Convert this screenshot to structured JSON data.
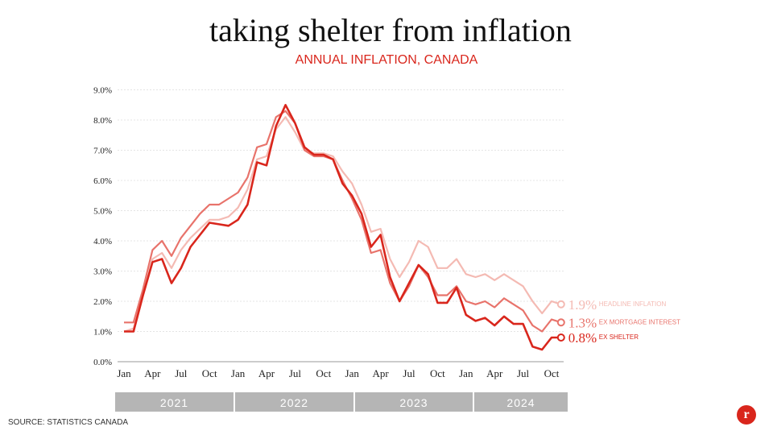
{
  "header": {
    "title": "taking shelter from inflation",
    "subtitle": "ANNUAL INFLATION, CANADA"
  },
  "footer": {
    "source": "SOURCE: STATISTICS CANADA",
    "logo": "r"
  },
  "chart_data": {
    "type": "line",
    "title": "taking shelter from inflation",
    "subtitle": "ANNUAL INFLATION, CANADA",
    "ylim": [
      0,
      9
    ],
    "yticks": [
      "0.0%",
      "1.0%",
      "2.0%",
      "3.0%",
      "4.0%",
      "5.0%",
      "6.0%",
      "7.0%",
      "8.0%",
      "9.0%"
    ],
    "xtick_labels": [
      "Jan",
      "Apr",
      "Jul",
      "Oct",
      "Jan",
      "Apr",
      "Jul",
      "Oct",
      "Jan",
      "Apr",
      "Jul",
      "Oct",
      "Jan",
      "Apr",
      "Jul",
      "Oct"
    ],
    "years": [
      "2021",
      "2022",
      "2023",
      "2024"
    ],
    "x_start": "Jan 2021",
    "x_end": "Nov 2024",
    "grid": true,
    "series": [
      {
        "name": "HEADLINE INFLATION",
        "end_label": "1.9%",
        "color": "#f4bab3",
        "values": [
          1.0,
          1.1,
          2.2,
          3.4,
          3.6,
          3.1,
          3.7,
          4.1,
          4.4,
          4.7,
          4.7,
          4.8,
          5.1,
          5.7,
          6.7,
          6.8,
          7.7,
          8.1,
          7.6,
          7.0,
          6.9,
          6.9,
          6.8,
          6.3,
          5.9,
          5.2,
          4.3,
          4.4,
          3.4,
          2.8,
          3.3,
          4.0,
          3.8,
          3.1,
          3.1,
          3.4,
          2.9,
          2.8,
          2.9,
          2.7,
          2.9,
          2.7,
          2.5,
          2.0,
          1.6,
          2.0,
          1.9
        ]
      },
      {
        "name": "EX MORTGAGE INTEREST",
        "end_label": "1.3%",
        "color": "#e8736b",
        "values": [
          1.3,
          1.3,
          2.4,
          3.7,
          4.0,
          3.5,
          4.1,
          4.5,
          4.9,
          5.2,
          5.2,
          5.4,
          5.6,
          6.1,
          7.1,
          7.2,
          8.1,
          8.3,
          7.9,
          7.0,
          6.8,
          6.8,
          6.7,
          6.0,
          5.4,
          4.7,
          3.6,
          3.7,
          2.6,
          2.0,
          2.5,
          3.2,
          2.8,
          2.2,
          2.2,
          2.5,
          2.0,
          1.9,
          2.0,
          1.8,
          2.1,
          1.9,
          1.7,
          1.2,
          1.0,
          1.4,
          1.3
        ]
      },
      {
        "name": "EX SHELTER",
        "end_label": "0.8%",
        "color": "#d9261c",
        "values": [
          1.0,
          1.0,
          2.2,
          3.3,
          3.4,
          2.6,
          3.1,
          3.8,
          4.2,
          4.6,
          4.55,
          4.5,
          4.7,
          5.2,
          6.6,
          6.5,
          7.8,
          8.5,
          7.9,
          7.1,
          6.85,
          6.85,
          6.7,
          5.9,
          5.5,
          4.9,
          3.8,
          4.2,
          2.8,
          2.0,
          2.6,
          3.2,
          2.9,
          1.95,
          1.95,
          2.45,
          1.55,
          1.35,
          1.45,
          1.2,
          1.5,
          1.25,
          1.25,
          0.5,
          0.4,
          0.8,
          0.8
        ]
      }
    ]
  }
}
